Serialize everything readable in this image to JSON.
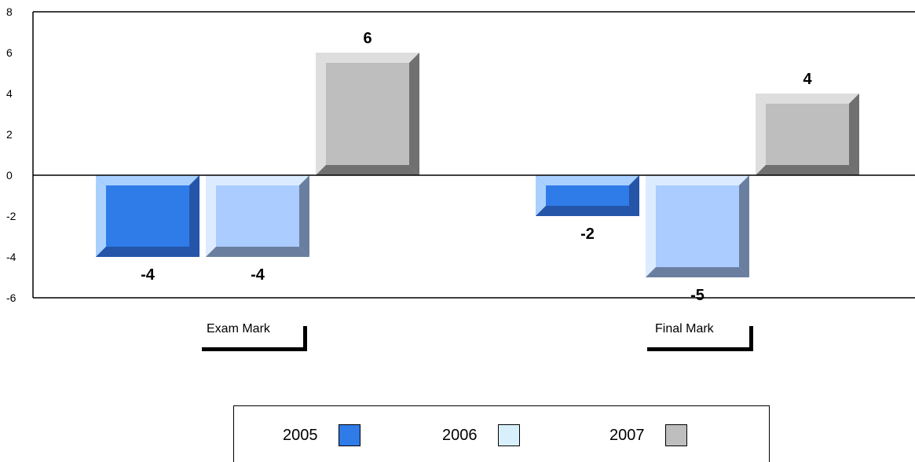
{
  "chart_data": {
    "type": "bar",
    "categories": [
      "Exam Mark",
      "Final Mark"
    ],
    "series": [
      {
        "name": "2005",
        "values": [
          -4,
          -2
        ],
        "color": "#2f7be8"
      },
      {
        "name": "2006",
        "values": [
          -4,
          -5
        ],
        "color": "#d8f0fb"
      },
      {
        "name": "2007",
        "values": [
          6,
          4
        ],
        "color": "#bebebe"
      }
    ],
    "data_labels": [
      [
        "-4",
        "-2"
      ],
      [
        "-4",
        "-5"
      ],
      [
        "6",
        "4"
      ]
    ],
    "yticks": [
      "8",
      "6",
      "4",
      "2",
      "0",
      "-2",
      "-4",
      "-6"
    ],
    "ylim": [
      -6,
      8
    ],
    "legend_position": "bottom",
    "style": "3d-bevel"
  }
}
